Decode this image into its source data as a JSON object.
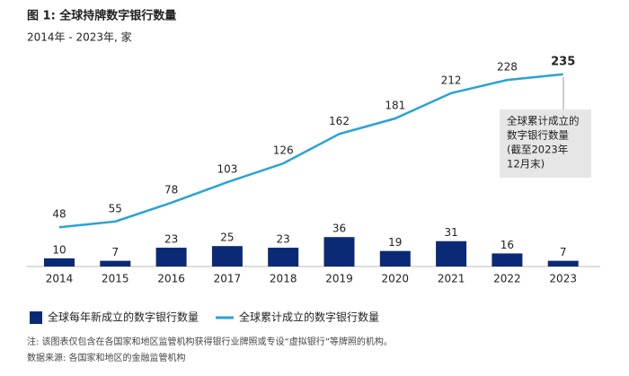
{
  "chart_data": {
    "type": "bar-line",
    "title": "图 1: 全球持牌数字银行数量",
    "subtitle": "2014年 - 2023年, 家",
    "categories": [
      "2014",
      "2015",
      "2016",
      "2017",
      "2018",
      "2019",
      "2020",
      "2021",
      "2022",
      "2023"
    ],
    "series": [
      {
        "name": "全球每年新成立的数字银行数量",
        "type": "bar",
        "color": "#0b2a75",
        "values": [
          10,
          7,
          23,
          25,
          23,
          36,
          19,
          31,
          16,
          7
        ]
      },
      {
        "name": "全球累计成立的数字银行数量",
        "type": "line",
        "color": "#2aa3d4",
        "values": [
          48,
          55,
          78,
          103,
          126,
          162,
          181,
          212,
          228,
          235
        ]
      }
    ],
    "ylim": [
      0,
      260
    ],
    "annotation": [
      "全球累计成立的",
      "数字银行数量",
      "(截至2023年",
      "12月末)"
    ],
    "notes": [
      "注: 该图表仅包含在各国家和地区监管机构获得银行业牌照或专设“虚拟银行”等牌照的机构。",
      "数据来源: 各国家和地区的金融监管机构"
    ]
  }
}
